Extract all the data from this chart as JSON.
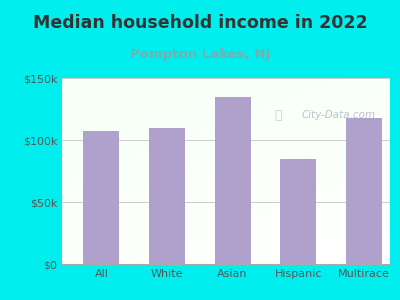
{
  "title": "Median household income in 2022",
  "subtitle": "Pompton Lakes, NJ",
  "categories": [
    "All",
    "White",
    "Asian",
    "Hispanic",
    "Multirace"
  ],
  "values": [
    107000,
    110000,
    135000,
    85000,
    118000
  ],
  "bar_color": "#b0a0cc",
  "title_fontsize": 12.5,
  "subtitle_fontsize": 9.5,
  "subtitle_color": "#7aaeae",
  "title_color": "#333333",
  "background_outer": "#00eeee",
  "ylim": [
    0,
    150000
  ],
  "yticks": [
    0,
    50000,
    100000,
    150000
  ],
  "ytick_labels": [
    "$0",
    "$50k",
    "$100k",
    "$150k"
  ],
  "watermark": "City-Data.com",
  "watermark_color": "#b0b8c0"
}
